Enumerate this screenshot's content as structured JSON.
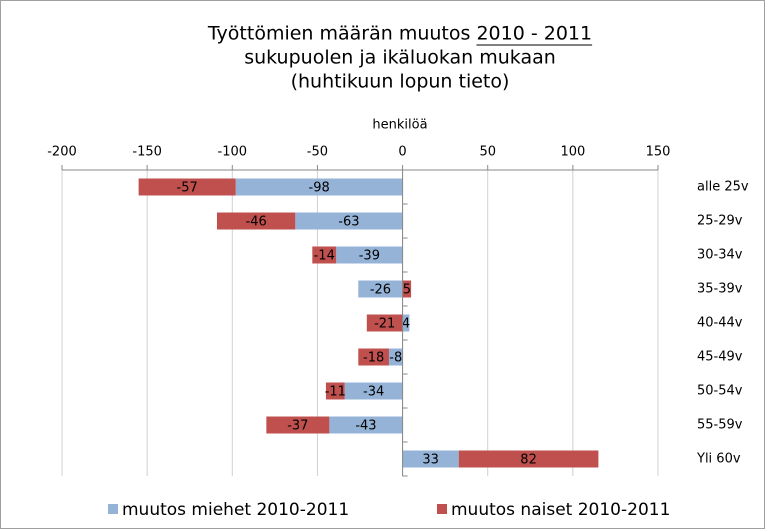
{
  "chart_data": {
    "type": "stacked-bar-horizontal",
    "title": [
      "Työttömien määrän muutos 2010 - 2011",
      "sukupuolen ja ikäluokan mukaan",
      "(huhtikuun lopun tieto)"
    ],
    "x_label": "henkilöä",
    "categories": [
      "alle 25v",
      "25-29v",
      "30-34v",
      "35-39v",
      "40-44v",
      "45-49v",
      "50-54v",
      "55-59v",
      "Yli 60v"
    ],
    "series": [
      {
        "name": "muutos miehet 2010-2011",
        "color": "#95b3d7",
        "values": [
          -98,
          -63,
          -39,
          -26,
          4,
          -8,
          -34,
          -43,
          33
        ]
      },
      {
        "name": "muutos naiset 2010-2011",
        "color": "#c0504d",
        "values": [
          -57,
          -46,
          -14,
          5,
          -21,
          -18,
          -11,
          -37,
          82
        ]
      }
    ],
    "xlim": [
      -200,
      150
    ],
    "xticks": [
      -200,
      -150,
      -100,
      -50,
      0,
      50,
      100,
      150
    ],
    "grid": true,
    "legend": "bottom"
  }
}
